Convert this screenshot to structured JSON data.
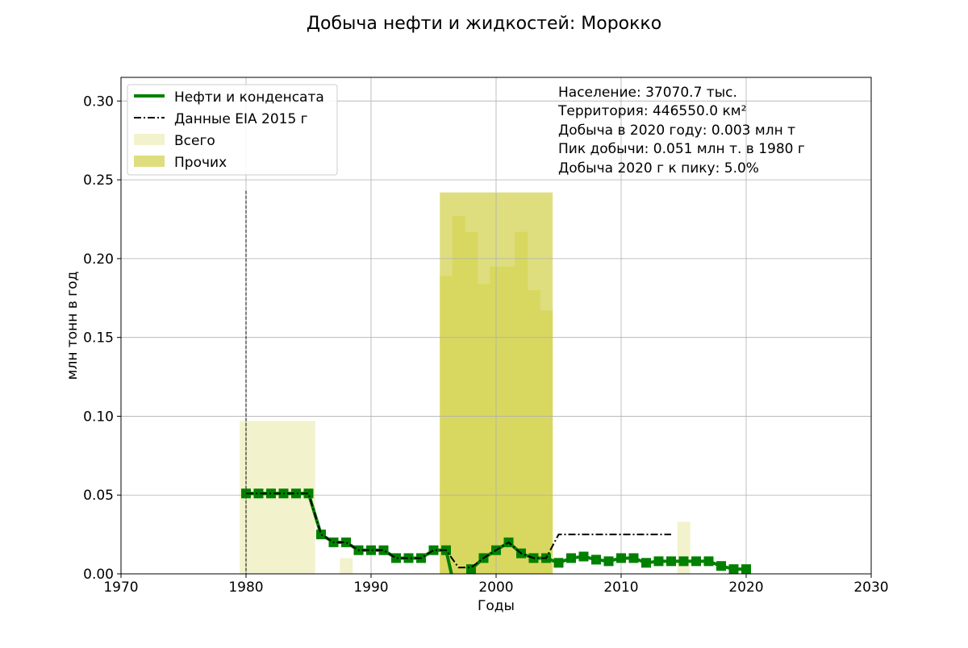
{
  "chart_data": {
    "type": "line",
    "title": "Добыча нефти и жидкостей: Морокко",
    "xlabel": "Годы",
    "ylabel": "млн тонн в год",
    "xlim": [
      1970,
      2030
    ],
    "ylim": [
      0,
      0.315
    ],
    "x_ticks": [
      "1970",
      "1980",
      "1990",
      "2000",
      "2010",
      "2020",
      "2030"
    ],
    "y_ticks": [
      "0.00",
      "0.05",
      "0.10",
      "0.15",
      "0.20",
      "0.25",
      "0.30"
    ],
    "grid": true,
    "legend_position": "top-left",
    "legend": [
      {
        "label": "Нефти и конденсата",
        "style": "solid-thick",
        "color": "#008000"
      },
      {
        "label": "Данные EIA 2015 г",
        "style": "dash-dot",
        "color": "#000000"
      },
      {
        "label": "Всего",
        "style": "patch",
        "color": "#f2f2cc"
      },
      {
        "label": "Прочих",
        "style": "patch",
        "color": "#dede7f"
      }
    ],
    "info_lines": [
      "Население: 37070.7 тыс.",
      "Территория: 446550.0 км²",
      "Добыча в 2020 году: 0.003 млн т",
      "Пик добычи: 0.051 млн т. в 1980 г",
      "Добыча 2020 г к пику: 5.0%"
    ],
    "total_bars": {
      "name": "Всего",
      "color": "#f2f2cc",
      "x": [
        1980,
        1981,
        1982,
        1983,
        1984,
        1985,
        1988,
        2015
      ],
      "values": [
        0.097,
        0.097,
        0.097,
        0.097,
        0.097,
        0.097,
        0.01,
        0.033
      ]
    },
    "other_bars": {
      "name": "Прочих",
      "color": "#dede7f",
      "x": [
        1996,
        1997,
        1998,
        1999,
        2000,
        2001,
        2002,
        2003,
        2004
      ],
      "values": [
        0.242,
        0.242,
        0.242,
        0.242,
        0.242,
        0.242,
        0.242,
        0.242,
        0.242
      ]
    },
    "other_bars_dark": {
      "color": "#d8d860",
      "x": [
        1996,
        1997,
        1998,
        1999,
        2000,
        2001,
        2002,
        2003,
        2004
      ],
      "values": [
        0.189,
        0.227,
        0.217,
        0.184,
        0.195,
        0.195,
        0.217,
        0.18,
        0.167
      ]
    },
    "series": [
      {
        "name": "Нефти и конденсата",
        "color": "#008000",
        "x": [
          1980,
          1981,
          1982,
          1983,
          1984,
          1985,
          1986,
          1987,
          1988,
          1989,
          1990,
          1991,
          1992,
          1993,
          1994,
          1995,
          1996,
          1997,
          1998,
          1999,
          2000,
          2001,
          2002,
          2003,
          2004,
          2005,
          2006,
          2007,
          2008,
          2009,
          2010,
          2011,
          2012,
          2013,
          2014,
          2015,
          2016,
          2017,
          2018,
          2019,
          2020
        ],
        "values": [
          0.051,
          0.051,
          0.051,
          0.051,
          0.051,
          0.051,
          0.025,
          0.02,
          0.02,
          0.015,
          0.015,
          0.015,
          0.01,
          0.01,
          0.01,
          0.015,
          0.015,
          -0.02,
          0.003,
          0.01,
          0.015,
          0.02,
          0.013,
          0.01,
          0.01,
          0.007,
          0.01,
          0.011,
          0.009,
          0.008,
          0.01,
          0.01,
          0.007,
          0.008,
          0.008,
          0.008,
          0.008,
          0.008,
          0.005,
          0.003,
          0.003
        ]
      },
      {
        "name": "Данные EIA 2015 г",
        "color": "#000000",
        "x": [
          1980,
          1981,
          1982,
          1983,
          1984,
          1985,
          1986,
          1987,
          1988,
          1989,
          1990,
          1991,
          1992,
          1993,
          1994,
          1995,
          1996,
          1997,
          1998,
          1999,
          2000,
          2001,
          2002,
          2003,
          2004,
          2005,
          2006,
          2007,
          2008,
          2009,
          2010,
          2011,
          2012,
          2013,
          2014
        ],
        "values": [
          0.051,
          0.051,
          0.051,
          0.051,
          0.051,
          0.051,
          0.025,
          0.02,
          0.02,
          0.015,
          0.015,
          0.015,
          0.01,
          0.01,
          0.01,
          0.015,
          0.015,
          0.004,
          0.004,
          0.01,
          0.015,
          0.02,
          0.013,
          0.01,
          0.01,
          0.025,
          0.025,
          0.025,
          0.025,
          0.025,
          0.025,
          0.025,
          0.025,
          0.025,
          0.025
        ]
      }
    ],
    "peak_marker": {
      "x": 1980,
      "y": 0.243
    }
  }
}
